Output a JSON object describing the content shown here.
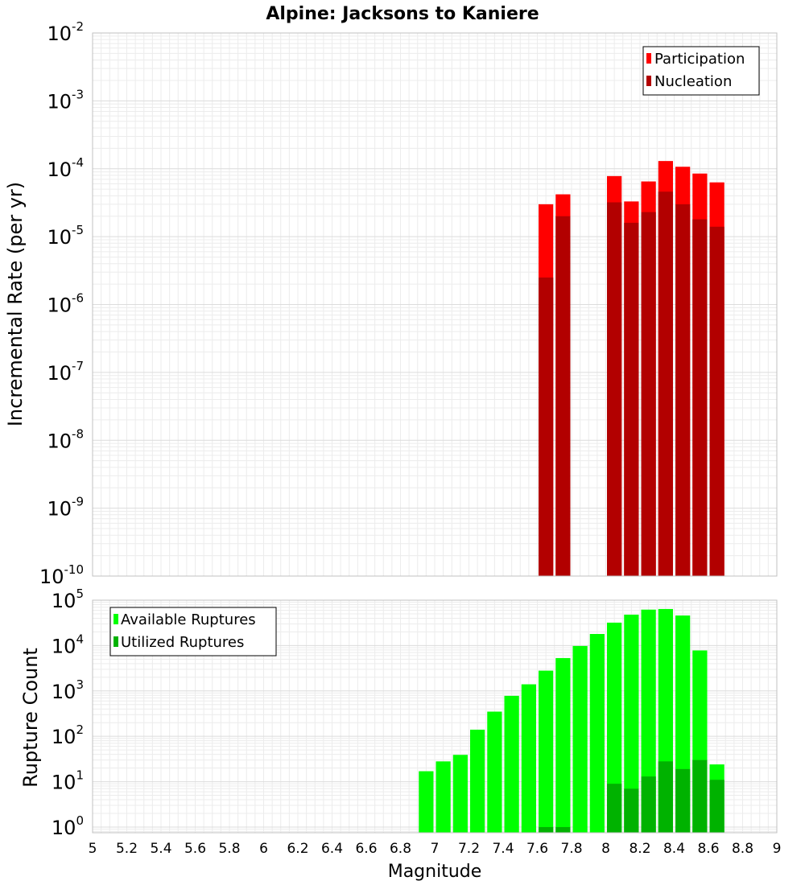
{
  "chart_data": [
    {
      "type": "bar",
      "title": "Alpine: Jacksons to Kaniere",
      "ylabel": "Incremental Rate (per yr)",
      "xlabel": "",
      "yscale": "log",
      "ylim": [
        1e-10,
        0.01
      ],
      "xlim": [
        5,
        9
      ],
      "grid": true,
      "legend": "top-right",
      "series": [
        {
          "name": "Participation",
          "color": "#ff0000",
          "x": [
            7.65,
            7.75,
            8.05,
            8.15,
            8.25,
            8.35,
            8.45,
            8.55,
            8.65
          ],
          "values": [
            3e-05,
            4.2e-05,
            7.8e-05,
            3.3e-05,
            6.5e-05,
            0.00013,
            0.000107,
            8.5e-05,
            6.3e-05
          ]
        },
        {
          "name": "Nucleation",
          "color": "#b20000",
          "x": [
            7.65,
            7.75,
            8.05,
            8.15,
            8.25,
            8.35,
            8.45,
            8.55,
            8.65
          ],
          "values": [
            2.5e-06,
            2e-05,
            3.2e-05,
            1.6e-05,
            2.3e-05,
            4.6e-05,
            3e-05,
            1.8e-05,
            1.4e-05
          ]
        }
      ]
    },
    {
      "type": "bar",
      "title": "",
      "ylabel": "Rupture Count",
      "xlabel": "Magnitude",
      "yscale": "log",
      "ylim": [
        0.75,
        100000
      ],
      "xlim": [
        5,
        9
      ],
      "xticks": [
        "5",
        "5.2",
        "5.4",
        "5.6",
        "5.8",
        "6",
        "6.2",
        "6.4",
        "6.6",
        "6.8",
        "7",
        "7.2",
        "7.4",
        "7.6",
        "7.8",
        "8",
        "8.2",
        "8.4",
        "8.6",
        "8.8",
        "9"
      ],
      "grid": true,
      "legend": "top-left",
      "series": [
        {
          "name": "Available Ruptures",
          "color": "#00ff00",
          "x": [
            6.95,
            7.05,
            7.15,
            7.25,
            7.35,
            7.45,
            7.55,
            7.65,
            7.75,
            7.85,
            7.95,
            8.05,
            8.15,
            8.25,
            8.35,
            8.45,
            8.55,
            8.65
          ],
          "values": [
            17,
            28,
            39,
            140,
            350,
            780,
            1400,
            2800,
            5300,
            9800,
            18000,
            32000,
            48000,
            62000,
            64000,
            46000,
            7800,
            24
          ]
        },
        {
          "name": "Utilized Ruptures",
          "color": "#00b200",
          "x": [
            7.65,
            7.75,
            8.05,
            8.15,
            8.25,
            8.35,
            8.45,
            8.55,
            8.65
          ],
          "values": [
            1,
            1,
            9,
            7,
            13,
            28,
            19,
            30,
            11
          ]
        }
      ]
    }
  ]
}
